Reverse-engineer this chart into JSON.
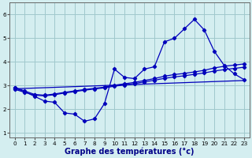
{
  "xlabel": "Graphe des températures (°c)",
  "bg_color": "#d4eef0",
  "grid_color": "#a0c8cc",
  "line_color": "#0000bb",
  "xlim": [
    -0.5,
    23.5
  ],
  "ylim": [
    0.8,
    6.5
  ],
  "xticks": [
    0,
    1,
    2,
    3,
    4,
    5,
    6,
    7,
    8,
    9,
    10,
    11,
    12,
    13,
    14,
    15,
    16,
    17,
    18,
    19,
    20,
    21,
    22,
    23
  ],
  "yticks": [
    1,
    2,
    3,
    4,
    5,
    6
  ],
  "series1_x": [
    0,
    1,
    2,
    3,
    4,
    5,
    6,
    7,
    8,
    9,
    10,
    11,
    12,
    13,
    14,
    15,
    16,
    17,
    18,
    19,
    20,
    21,
    22,
    23
  ],
  "series1_y": [
    2.9,
    2.75,
    2.55,
    2.35,
    2.3,
    1.85,
    1.8,
    1.5,
    1.6,
    2.25,
    3.7,
    3.35,
    3.3,
    3.7,
    3.8,
    4.85,
    5.0,
    5.4,
    5.8,
    5.35,
    4.45,
    3.85,
    3.5,
    3.25
  ],
  "series2_x": [
    0,
    1,
    2,
    3,
    4,
    5,
    6,
    7,
    8,
    9,
    10,
    11,
    12,
    13,
    14,
    15,
    16,
    17,
    18,
    19,
    20,
    21,
    22,
    23
  ],
  "series2_y": [
    2.93,
    2.78,
    2.63,
    2.6,
    2.65,
    2.72,
    2.78,
    2.84,
    2.89,
    2.94,
    3.02,
    3.08,
    3.14,
    3.22,
    3.3,
    3.4,
    3.47,
    3.52,
    3.58,
    3.65,
    3.75,
    3.82,
    3.87,
    3.92
  ],
  "series3_x": [
    0,
    1,
    2,
    3,
    4,
    5,
    6,
    7,
    8,
    9,
    10,
    11,
    12,
    13,
    14,
    15,
    16,
    17,
    18,
    19,
    20,
    21,
    22,
    23
  ],
  "series3_y": [
    2.85,
    2.72,
    2.6,
    2.57,
    2.62,
    2.69,
    2.75,
    2.81,
    2.86,
    2.91,
    2.98,
    3.03,
    3.09,
    3.16,
    3.23,
    3.31,
    3.37,
    3.42,
    3.48,
    3.54,
    3.62,
    3.68,
    3.73,
    3.78
  ],
  "series4_x": [
    0,
    23
  ],
  "series4_y": [
    2.87,
    3.22
  ],
  "marker": "D",
  "marker_size": 2.2,
  "line_width": 0.9,
  "xlabel_fontsize": 7.0,
  "tick_fontsize": 5.2
}
